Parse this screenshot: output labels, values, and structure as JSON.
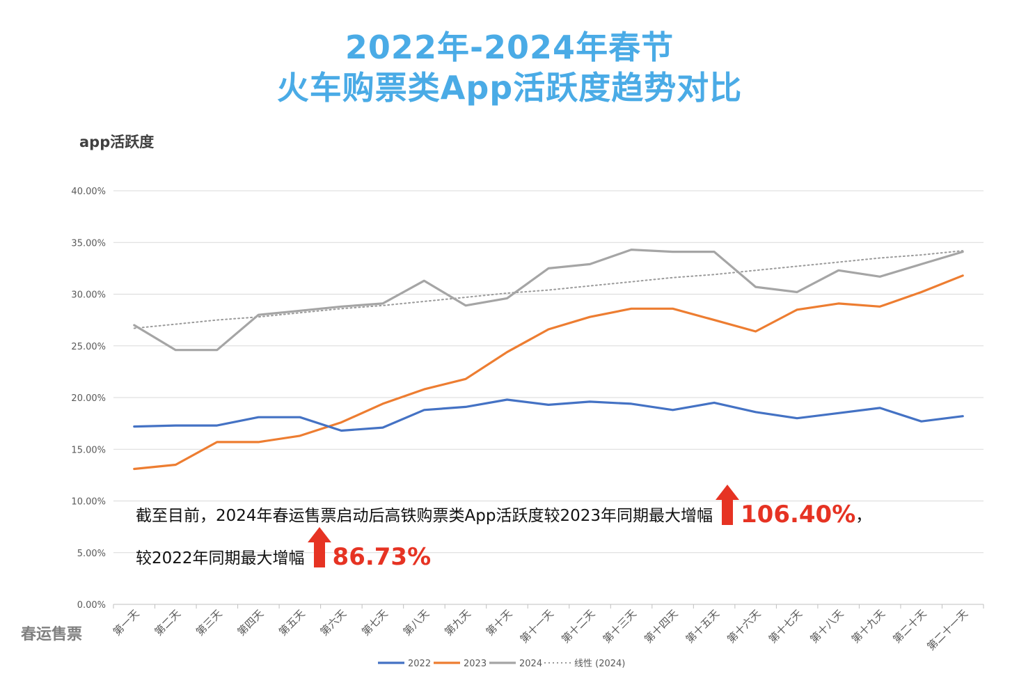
{
  "title_line1": "2022年-2024年春节",
  "title_line2": "火车购票类App活跃度趋势对比",
  "side_label": "春运售票",
  "annotation": {
    "line1_text": "截至目前，2024年春运售票启动后高铁购票类App活跃度较2023年同期最大增幅",
    "line1_pct": "106.40%",
    "line1_tail": "，",
    "line2_text": "较2022年同期最大增幅",
    "line2_pct": "86.73%",
    "arrow_color": "#e63323"
  },
  "chart_data": {
    "type": "line",
    "ylabel": "app活跃度",
    "xlabel": "",
    "ylim": [
      0,
      40
    ],
    "yticks": [
      "0.00%",
      "5.00%",
      "10.00%",
      "15.00%",
      "20.00%",
      "25.00%",
      "30.00%",
      "35.00%",
      "40.00%"
    ],
    "grid": true,
    "legend_position": "bottom",
    "categories": [
      "第一天",
      "第二天",
      "第三天",
      "第四天",
      "第五天",
      "第六天",
      "第七天",
      "第八天",
      "第九天",
      "第十天",
      "第十一天",
      "第十二天",
      "第十三天",
      "第十四天",
      "第十五天",
      "第十六天",
      "第十七天",
      "第十八天",
      "第十九天",
      "第二十天",
      "第二十一天"
    ],
    "series": [
      {
        "name": "2022",
        "color": "#4472c4",
        "style": "solid",
        "values": [
          17.2,
          17.3,
          17.3,
          18.1,
          18.1,
          16.8,
          17.1,
          18.8,
          19.1,
          19.8,
          19.3,
          19.6,
          19.4,
          18.8,
          19.5,
          18.6,
          18.0,
          18.5,
          19.0,
          17.7,
          18.2
        ]
      },
      {
        "name": "2023",
        "color": "#ed7d31",
        "style": "solid",
        "values": [
          13.1,
          13.5,
          15.7,
          15.7,
          16.3,
          17.6,
          19.4,
          20.8,
          21.8,
          24.4,
          26.6,
          27.8,
          28.6,
          28.6,
          27.5,
          26.4,
          28.5,
          29.1,
          28.8,
          30.2,
          31.8
        ]
      },
      {
        "name": "2024",
        "color": "#a5a5a5",
        "style": "solid",
        "values": [
          27.0,
          24.6,
          24.6,
          28.0,
          28.4,
          28.8,
          29.1,
          31.3,
          28.9,
          29.6,
          32.5,
          32.9,
          34.3,
          34.1,
          34.1,
          30.7,
          30.2,
          32.3,
          31.7,
          32.9,
          34.1
        ]
      },
      {
        "name": "线性 (2024)",
        "color": "#a5a5a5",
        "style": "dotted",
        "values": [
          26.7,
          27.1,
          27.5,
          27.8,
          28.2,
          28.6,
          28.9,
          29.3,
          29.7,
          30.1,
          30.4,
          30.8,
          31.2,
          31.6,
          31.9,
          32.3,
          32.7,
          33.1,
          33.5,
          33.8,
          34.2
        ]
      }
    ]
  }
}
